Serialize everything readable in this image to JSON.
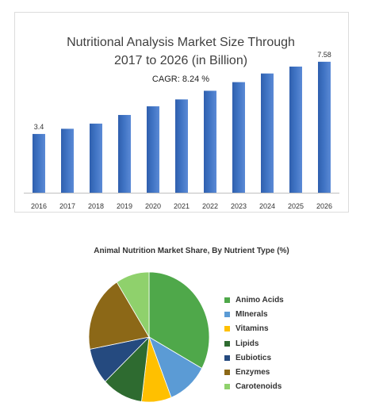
{
  "charts": {
    "market": {
      "title_line1": "Nutritional Analysis Market Size Through",
      "title_line2": "2017 to 2026 (in Billion)",
      "subtitle": "CAGR: 8.24 %"
    },
    "nutrient": {
      "title": "Animal Nutrition Market Share, By Nutrient Type (%)"
    }
  },
  "chart_data": [
    {
      "type": "bar",
      "title": "Nutritional Analysis Market Size Through 2017 to 2026 (in Billion)",
      "annotation": "CAGR: 8.24 %",
      "categories": [
        "2016",
        "2017",
        "2018",
        "2019",
        "2020",
        "2021",
        "2022",
        "2023",
        "2024",
        "2025",
        "2026"
      ],
      "values": [
        3.4,
        3.7,
        4.0,
        4.5,
        5.0,
        5.4,
        5.9,
        6.4,
        6.9,
        7.3,
        7.58
      ],
      "value_labels": [
        "3.4",
        "",
        "",
        "",
        "",
        "",
        "",
        "",
        "",
        "",
        "7.58"
      ],
      "ylim": [
        0,
        8.4
      ],
      "bar_color": "#3f73c3",
      "grid": false
    },
    {
      "type": "pie",
      "title": "Animal Nutrition Market Share, By Nutrient Type (%)",
      "labels": [
        "Animo Acids",
        "MInerals",
        "Vitamins",
        "Lipids",
        "Eubiotics",
        "Enzymes",
        "Carotenoids"
      ],
      "values": [
        33,
        11,
        8,
        11,
        9,
        19,
        9
      ],
      "colors": [
        "#4fa84a",
        "#5b9bd5",
        "#ffc000",
        "#2e6b30",
        "#254a7f",
        "#8c6817",
        "#8fd16c"
      ],
      "legend_position": "right"
    }
  ]
}
